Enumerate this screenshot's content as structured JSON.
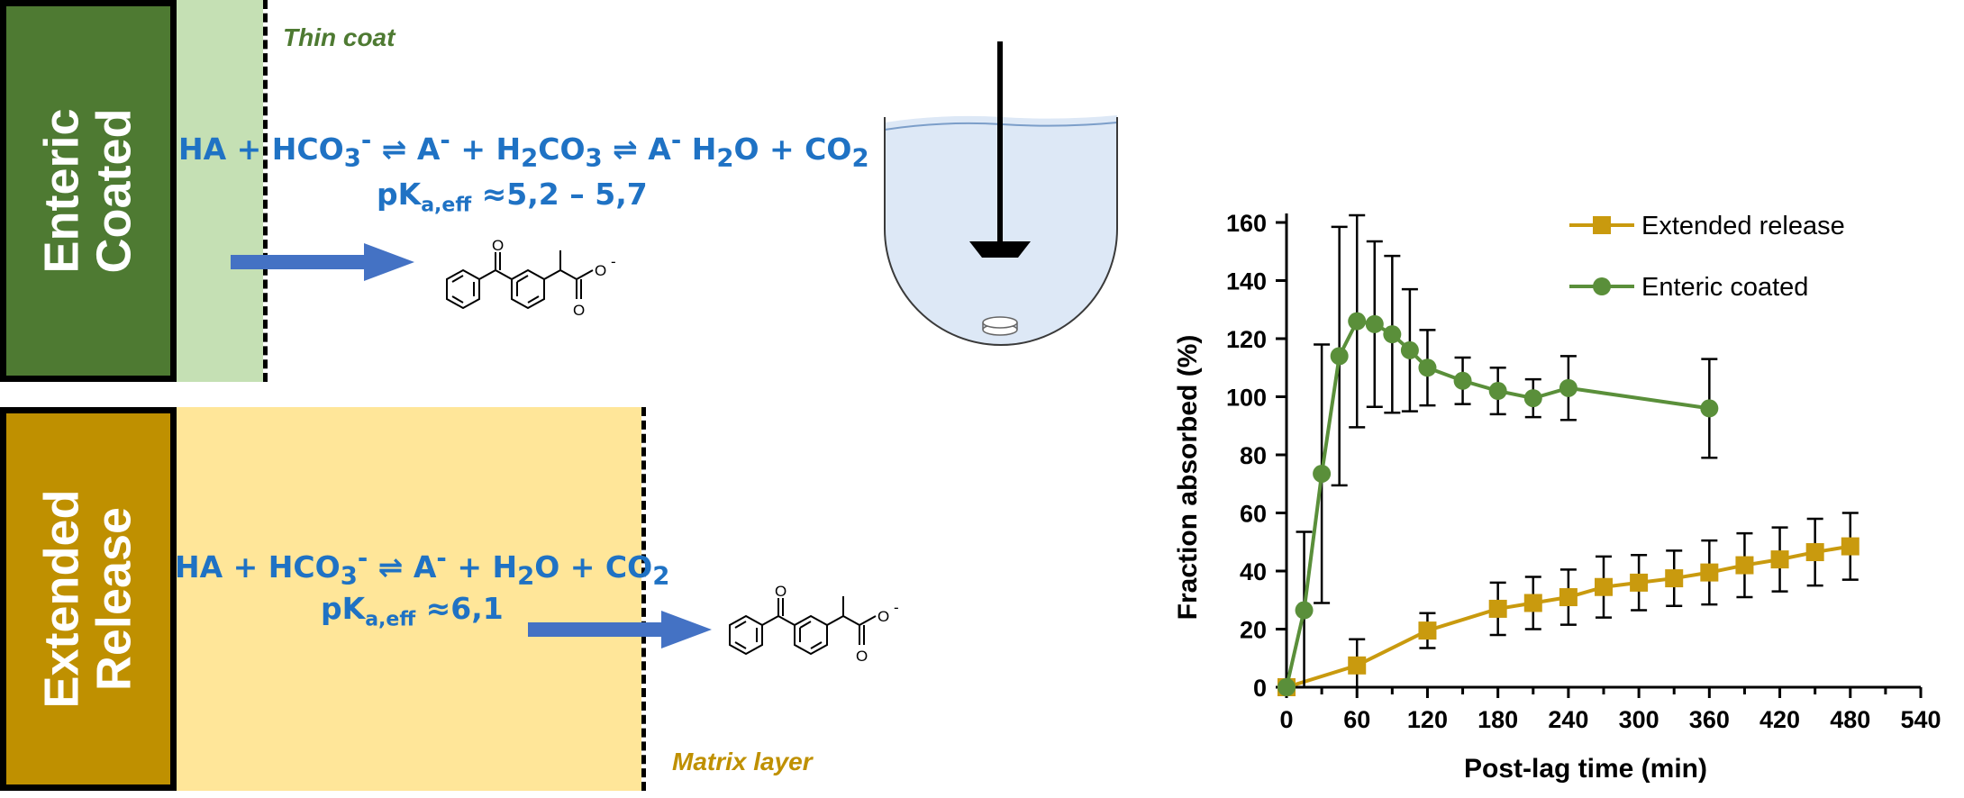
{
  "colors": {
    "enteric_dark": "#4e7a32",
    "enteric_light": "#c5e0b4",
    "extended_dark": "#bf9000",
    "extended_light": "#ffe699",
    "equation_blue": "#1f72c4",
    "arrow_blue": "#4472c4",
    "enteric_series": "#5a8f3a",
    "extended_series": "#c99a0e"
  },
  "enteric": {
    "label_line1": "Enteric",
    "label_line2": "Coated",
    "layer_label": "Thin coat",
    "equation": {
      "p1": "HA + HCO",
      "p1_sub": "3",
      "p1_sup": "-",
      "eq1": " ⇌ A",
      "eq1_sup": "-",
      "p2": " + H",
      "p2_sub": "2",
      "p3": "CO",
      "p3_sub": "3",
      "eq2": " ⇌ A",
      "eq2_sup": "-",
      "p4": " H",
      "p4_sub": "2",
      "p5": "O + CO",
      "p5_sub": "2"
    },
    "pka": {
      "prefix": "pK",
      "sub": "a,eff",
      "value": " ≈5,2 – 5,7"
    }
  },
  "extended": {
    "label_line1": "Extended",
    "label_line2": "Release",
    "layer_label": "Matrix layer",
    "equation": {
      "p1": "HA + HCO",
      "p1_sub": "3",
      "p1_sup": "-",
      "eq1": " ⇌ A",
      "eq1_sup": "-",
      "p2": " + H",
      "p2_sub": "2",
      "p3": "O + CO",
      "p3_sub": "2"
    },
    "pka": {
      "prefix": "pK",
      "sub": "a,eff",
      "value": " ≈6,1"
    }
  },
  "molecule": {
    "oxygen": "O",
    "charge": "-"
  },
  "chart_data": {
    "type": "line",
    "xlabel": "Post-lag time (min)",
    "ylabel": "Fraction absorbed (%)",
    "xlim": [
      0,
      540
    ],
    "ylim": [
      0,
      160
    ],
    "xticks": [
      0,
      60,
      120,
      180,
      240,
      300,
      360,
      420,
      480,
      540
    ],
    "yticks": [
      0,
      20,
      40,
      60,
      80,
      100,
      120,
      140,
      160
    ],
    "grid": false,
    "legend_position": "top-right",
    "series": [
      {
        "name": "Extended release",
        "marker": "square",
        "color": "#c99a0e",
        "points": [
          {
            "x": 0,
            "y": 0,
            "err": 0
          },
          {
            "x": 60,
            "y": 7.5,
            "err": 9
          },
          {
            "x": 120,
            "y": 19.5,
            "err": 6
          },
          {
            "x": 180,
            "y": 27,
            "err": 9
          },
          {
            "x": 210,
            "y": 29,
            "err": 9
          },
          {
            "x": 240,
            "y": 31,
            "err": 9.5
          },
          {
            "x": 270,
            "y": 34.5,
            "err": 10.5
          },
          {
            "x": 300,
            "y": 36,
            "err": 9.5
          },
          {
            "x": 330,
            "y": 37.5,
            "err": 9.5
          },
          {
            "x": 360,
            "y": 39.5,
            "err": 11
          },
          {
            "x": 390,
            "y": 42,
            "err": 11
          },
          {
            "x": 420,
            "y": 44,
            "err": 11
          },
          {
            "x": 450,
            "y": 46.5,
            "err": 11.5
          },
          {
            "x": 480,
            "y": 48.5,
            "err": 11.5
          }
        ]
      },
      {
        "name": "Enteric coated",
        "marker": "circle",
        "color": "#5a8f3a",
        "points": [
          {
            "x": 0,
            "y": 0,
            "err": 0
          },
          {
            "x": 15,
            "y": 26.5,
            "err": 27
          },
          {
            "x": 30,
            "y": 73.5,
            "err": 44.5
          },
          {
            "x": 45,
            "y": 114,
            "err": 44.5
          },
          {
            "x": 60,
            "y": 126,
            "err": 36.5
          },
          {
            "x": 75,
            "y": 125,
            "err": 28.5
          },
          {
            "x": 90,
            "y": 121.5,
            "err": 27
          },
          {
            "x": 105,
            "y": 116,
            "err": 21
          },
          {
            "x": 120,
            "y": 110,
            "err": 13
          },
          {
            "x": 150,
            "y": 105.5,
            "err": 8
          },
          {
            "x": 180,
            "y": 102,
            "err": 8
          },
          {
            "x": 210,
            "y": 99.5,
            "err": 6.5
          },
          {
            "x": 240,
            "y": 103,
            "err": 11
          },
          {
            "x": 360,
            "y": 96,
            "err": 17
          }
        ]
      }
    ]
  }
}
